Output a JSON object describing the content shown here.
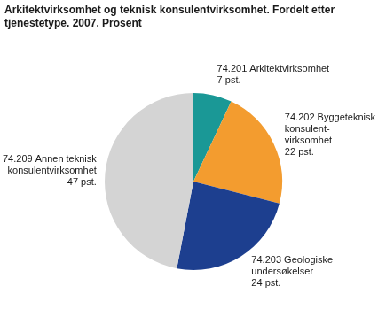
{
  "chart_data": {
    "type": "pie",
    "title": "Arkitektvirksomhet og teknisk konsulentvirksomhet. Fordelt etter\ntjenestetype. 2007. Prosent",
    "categories": [
      "74.201 Arkitektvirksomhet",
      "74.202 Byggeteknisk\nkonsulent-\nvirksomhet",
      "74.203 Geologiske\nundersøkelser",
      "74.209 Annen teknisk\nkonsulentvirksomhet"
    ],
    "values": [
      7,
      22,
      24,
      47
    ],
    "value_labels": [
      "7 pst.",
      "22 pst.",
      "24 pst.",
      "47 pst."
    ],
    "colors": [
      "#1a9896",
      "#f39c2f",
      "#1d3f8f",
      "#d4d4d4"
    ],
    "data_labels": true
  }
}
